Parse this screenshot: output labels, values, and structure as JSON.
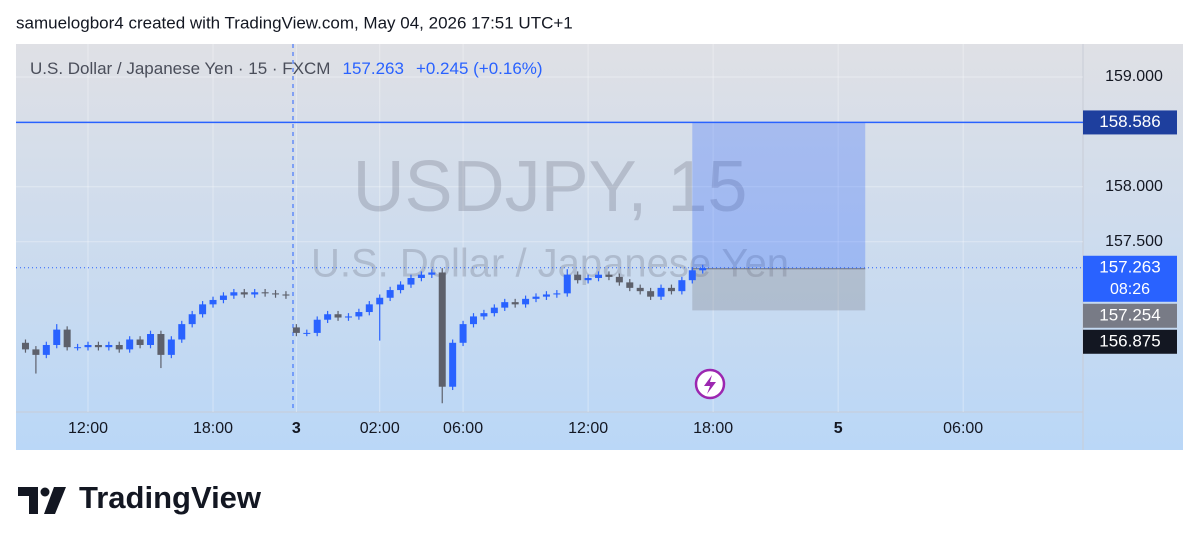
{
  "header": {
    "credit": "samuelogbor4 created with TradingView.com, May 04, 2026 17:51 UTC+1"
  },
  "chart_data": {
    "type": "candlestick",
    "symbol": "U.S. Dollar / Japanese Yen · 15 · FXCM",
    "change": "+0.245 (+0.16%)",
    "watermark": "USDJPY, 15",
    "watermark_subtitle": "U.S. Dollar / Japanese Yen",
    "up_color": "#2962ff",
    "down_color": "#5d606b",
    "open": [
      156.58,
      156.52,
      156.47,
      156.56,
      156.7,
      156.54,
      156.54,
      156.56,
      156.54,
      156.56,
      156.52,
      156.61,
      156.56,
      156.66,
      156.47,
      156.61,
      156.75,
      156.84,
      156.93,
      156.97,
      157.01,
      157.04,
      157.02,
      157.04,
      157.03,
      157.02,
      156.72,
      156.67,
      156.67,
      156.79,
      156.84,
      156.81,
      156.82,
      156.86,
      156.93,
      156.99,
      157.06,
      157.11,
      157.17,
      157.2,
      157.22,
      156.18,
      156.58,
      156.75,
      156.82,
      156.85,
      156.9,
      156.95,
      156.93,
      156.98,
      157.0,
      157.02,
      157.03,
      157.2,
      157.15,
      157.17,
      157.2,
      157.18,
      157.13,
      157.08,
      157.05,
      157.0,
      157.08,
      157.05,
      157.15,
      157.24
    ],
    "high": [
      156.61,
      156.55,
      156.59,
      156.75,
      156.73,
      156.57,
      156.59,
      156.59,
      156.59,
      156.59,
      156.64,
      156.64,
      156.69,
      156.69,
      156.64,
      156.78,
      156.87,
      156.96,
      157.0,
      157.04,
      157.07,
      157.07,
      157.07,
      157.07,
      157.06,
      157.05,
      156.75,
      156.7,
      156.82,
      156.87,
      156.87,
      156.85,
      156.89,
      156.96,
      157.02,
      157.09,
      157.14,
      157.2,
      157.23,
      157.25,
      157.26,
      156.61,
      156.78,
      156.85,
      156.88,
      156.93,
      156.98,
      156.98,
      157.01,
      157.03,
      157.05,
      157.06,
      157.25,
      157.23,
      157.2,
      157.23,
      157.23,
      157.21,
      157.16,
      157.11,
      157.08,
      157.11,
      157.11,
      157.18,
      157.27,
      157.29
    ],
    "low": [
      156.49,
      156.3,
      156.44,
      156.53,
      156.51,
      156.51,
      156.51,
      156.51,
      156.51,
      156.49,
      156.49,
      156.53,
      156.53,
      156.35,
      156.44,
      156.58,
      156.72,
      156.81,
      156.9,
      156.94,
      156.98,
      156.99,
      156.99,
      157.0,
      156.99,
      156.98,
      156.64,
      156.64,
      156.64,
      156.76,
      156.78,
      156.78,
      156.79,
      156.83,
      156.6,
      156.96,
      157.03,
      157.08,
      157.14,
      157.17,
      156.03,
      156.15,
      156.55,
      156.72,
      156.79,
      156.82,
      156.87,
      156.9,
      156.9,
      156.95,
      156.97,
      156.99,
      157.0,
      157.12,
      157.12,
      157.14,
      157.15,
      157.1,
      157.05,
      157.02,
      156.97,
      156.97,
      157.02,
      157.02,
      157.12,
      157.21
    ],
    "close": [
      156.52,
      156.47,
      156.56,
      156.7,
      156.54,
      156.54,
      156.56,
      156.54,
      156.56,
      156.52,
      156.61,
      156.56,
      156.66,
      156.47,
      156.61,
      156.75,
      156.84,
      156.93,
      156.97,
      157.01,
      157.04,
      157.02,
      157.04,
      157.03,
      157.02,
      157.01,
      156.67,
      156.67,
      156.79,
      156.84,
      156.81,
      156.82,
      156.86,
      156.93,
      156.99,
      157.06,
      157.11,
      157.17,
      157.2,
      157.22,
      156.18,
      156.58,
      156.75,
      156.82,
      156.85,
      156.9,
      156.95,
      156.93,
      156.98,
      157.0,
      157.02,
      157.03,
      157.2,
      157.15,
      157.17,
      157.2,
      157.18,
      157.13,
      157.08,
      157.05,
      157.0,
      157.08,
      157.05,
      157.15,
      157.24,
      157.26
    ],
    "xlim": [
      -0.91,
      101.5
    ],
    "xticks": [
      {
        "value": 6,
        "label": "12:00"
      },
      {
        "value": 18,
        "label": "18:00"
      },
      {
        "value": 26,
        "label": "3"
      },
      {
        "value": 34,
        "label": "02:00"
      },
      {
        "value": 42,
        "label": "06:00"
      },
      {
        "value": 54,
        "label": "12:00"
      },
      {
        "value": 66,
        "label": "18:00"
      },
      {
        "value": 78,
        "label": "5"
      },
      {
        "value": 90,
        "label": "06:00"
      }
    ],
    "ylim": [
      155.95,
      159.3
    ],
    "yticks": [
      {
        "value": 157.5,
        "label": "157.500"
      },
      {
        "value": 158,
        "label": "158.000"
      },
      {
        "value": 159,
        "label": "159.000"
      }
    ],
    "price_line": {
      "value": 158.586,
      "color": "#2962ff",
      "label_color": "#1e3f9e"
    },
    "last": {
      "value": 157.263,
      "countdown": "08:26",
      "color": "#2962ff"
    },
    "position": {
      "start": 64,
      "end": 80.6,
      "target": 158.586,
      "entry": 157.254,
      "stop": 156.875,
      "entry_color": "#787b86",
      "stop_color": "#131722"
    }
  },
  "brand": "TradingView"
}
